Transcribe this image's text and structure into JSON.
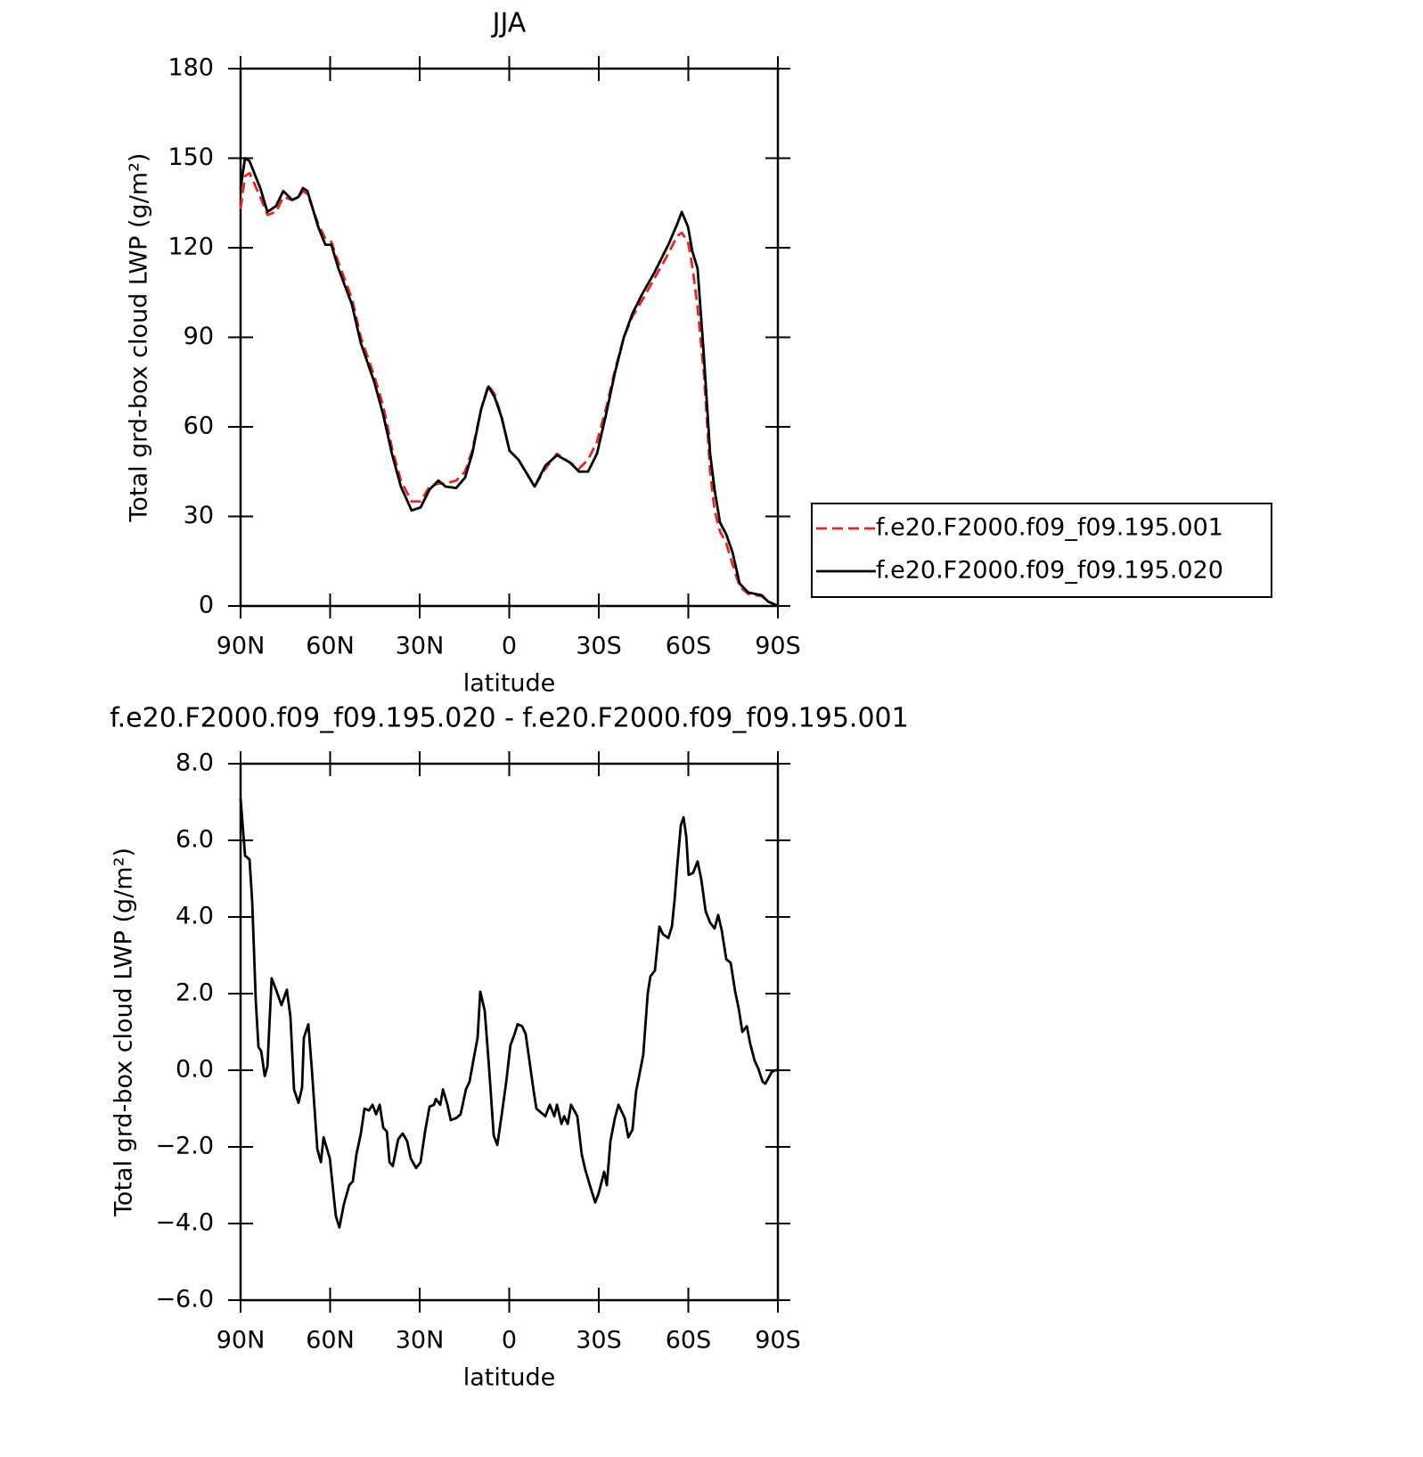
{
  "chart_data": [
    {
      "type": "line",
      "title": "JJA",
      "x_label": "latitude",
      "y_label": "Total grd-box cloud LWP (g/m²)",
      "xlim": [
        90,
        -90
      ],
      "xticks": [
        {
          "value": 90,
          "label": "90N"
        },
        {
          "value": 60,
          "label": "60N"
        },
        {
          "value": 30,
          "label": "30N"
        },
        0,
        {
          "value": -30,
          "label": "30S"
        },
        {
          "value": -60,
          "label": "60S"
        },
        {
          "value": -90,
          "label": "90S"
        }
      ],
      "ylim": [
        0,
        180
      ],
      "yticks": [
        0,
        30,
        60,
        90,
        120,
        150,
        180
      ],
      "legend": "right",
      "series": [
        {
          "name": "f.e20.F2000.f09_f09.195.001",
          "color": "#e8251f",
          "line_style": "dashed",
          "x": [
            90,
            88.5,
            87,
            83.4,
            81,
            78.1,
            75.7,
            72.7,
            70.6,
            69.1,
            67.6,
            64,
            61.6,
            59.6,
            57.2,
            52.7,
            49.7,
            45.2,
            42.2,
            39.3,
            36.3,
            32.7,
            29.7,
            26.7,
            23.7,
            21.3,
            17.8,
            14.8,
            12.4,
            9.4,
            7,
            4.9,
            2.5,
            -0.1,
            -3.1,
            -5.5,
            -8.5,
            -12.1,
            -16,
            -20.4,
            -23.4,
            -26.4,
            -29.4,
            -32.4,
            -35.4,
            -38.4,
            -41.3,
            -44.3,
            -48.8,
            -53.3,
            -56.3,
            -57.8,
            -59.9,
            -61.3,
            -63.1,
            -65.2,
            -67.3,
            -68.8,
            -70.6,
            -72.7,
            -74.8,
            -77.2,
            -80.1,
            -84.6,
            -86.7,
            -90
          ],
          "values": [
            133,
            144,
            145,
            137,
            131,
            132,
            137,
            136,
            137,
            139,
            138,
            128,
            123,
            122,
            115,
            103,
            90,
            77,
            67,
            53,
            42,
            35,
            35,
            40,
            41,
            41,
            42,
            45,
            52,
            66,
            74,
            71,
            63,
            52,
            49,
            45,
            40,
            46,
            51,
            48,
            46,
            49,
            55,
            66,
            79,
            90,
            97,
            102,
            110,
            118,
            124,
            125,
            122,
            114,
            100,
            78,
            45,
            32,
            25,
            21,
            14,
            6.5,
            4,
            3.3,
            1.5,
            0
          ]
        },
        {
          "name": "f.e20.F2000.f09_f09.195.020",
          "color": "#000000",
          "line_style": "solid",
          "x": [
            90,
            88.5,
            87,
            83.4,
            81,
            78.1,
            75.7,
            72.7,
            70.6,
            69.1,
            67.6,
            64,
            61.6,
            59.6,
            57.2,
            52.7,
            49.7,
            45.2,
            42.2,
            39.3,
            36.3,
            32.7,
            29.7,
            26.7,
            23.7,
            21.3,
            17.8,
            14.8,
            12.4,
            9.4,
            7,
            4.9,
            2.5,
            -0.1,
            -3.1,
            -5.5,
            -8.5,
            -12.1,
            -16,
            -20.4,
            -23.4,
            -26.4,
            -29.4,
            -32.4,
            -35.4,
            -38.4,
            -41.3,
            -44.3,
            -48.8,
            -53.3,
            -56.3,
            -57.8,
            -59.9,
            -61.3,
            -63.1,
            -65.2,
            -67.3,
            -68.8,
            -70.6,
            -72.7,
            -74.8,
            -77.2,
            -80.1,
            -84.6,
            -86.7,
            -90
          ],
          "values": [
            140,
            150,
            149,
            140,
            132,
            134,
            139,
            136,
            137,
            140,
            139,
            127,
            121,
            121,
            113,
            101,
            88,
            75,
            64,
            51,
            40,
            32,
            33,
            39,
            42,
            40,
            39.5,
            43,
            51,
            66,
            73.5,
            70,
            63,
            52,
            49,
            45,
            40,
            47,
            50.5,
            48,
            45,
            45,
            51,
            64,
            78,
            90,
            98,
            104,
            112,
            121,
            128,
            132,
            127,
            119,
            113,
            84,
            51,
            39,
            28,
            24,
            18,
            7.5,
            4.5,
            3.6,
            1.5,
            0
          ]
        }
      ]
    },
    {
      "type": "line",
      "title": "f.e20.F2000.f09_f09.195.020 - f.e20.F2000.f09_f09.195.001",
      "x_label": "latitude",
      "y_label": "Total grd-box cloud LWP (g/m²)",
      "xlim": [
        90,
        -90
      ],
      "xticks": [
        {
          "value": 90,
          "label": "90N"
        },
        {
          "value": 60,
          "label": "60N"
        },
        {
          "value": 30,
          "label": "30N"
        },
        0,
        {
          "value": -30,
          "label": "30S"
        },
        {
          "value": -60,
          "label": "60S"
        },
        {
          "value": -90,
          "label": "90S"
        }
      ],
      "ylim": [
        -6,
        8
      ],
      "yticks": [
        {
          "value": -6,
          "label": "−6.0"
        },
        {
          "value": -4,
          "label": "−4.0"
        },
        {
          "value": -2,
          "label": "−2.0"
        },
        {
          "value": 0,
          "label": "0.0"
        },
        {
          "value": 2,
          "label": "2.0"
        },
        {
          "value": 4,
          "label": "4.0"
        },
        {
          "value": 6,
          "label": "6.0"
        },
        {
          "value": 8,
          "label": "8.0"
        }
      ],
      "series": [
        {
          "color": "#000000",
          "line_style": "solid",
          "x": [
            90,
            88.5,
            87,
            86.1,
            84.9,
            84,
            83.1,
            81.9,
            81,
            79.6,
            78.1,
            76.3,
            74.5,
            73.3,
            72.1,
            70.6,
            69.4,
            68.8,
            67.3,
            66.1,
            64.3,
            63.1,
            62.2,
            60.1,
            58.1,
            56.9,
            55.4,
            53.6,
            52.4,
            51.2,
            49.7,
            48.5,
            47,
            45.8,
            44.6,
            43.4,
            42.2,
            41,
            40.1,
            39,
            37.2,
            35.7,
            34.2,
            33,
            31.2,
            29.7,
            28.2,
            26.7,
            25.2,
            24.6,
            23.1,
            22.2,
            20.7,
            19.6,
            17.8,
            16.3,
            14.5,
            13.3,
            11.8,
            10.6,
            9.7,
            8.2,
            6.7,
            5.2,
            4,
            2.5,
            1,
            -0.4,
            -1.6,
            -2.8,
            -4.3,
            -5.5,
            -8.2,
            -9.1,
            -10.6,
            -12.1,
            -13.6,
            -15.1,
            -16,
            -17.5,
            -18.4,
            -19.6,
            -20.7,
            -22.8,
            -24.3,
            -25.5,
            -27,
            -28.8,
            -30,
            -31.8,
            -32.7,
            -33.9,
            -35.4,
            -36.6,
            -37.5,
            -38.7,
            -39.9,
            -41.3,
            -42.5,
            -44.9,
            -46.4,
            -47.3,
            -48.8,
            -50.3,
            -51.5,
            -53.3,
            -54.5,
            -55.4,
            -56.3,
            -57.5,
            -58.4,
            -59.3,
            -60.1,
            -61.6,
            -63.1,
            -64.3,
            -65.8,
            -67.3,
            -68.8,
            -70,
            -71.2,
            -72.7,
            -74.2,
            -75.7,
            -76.9,
            -78.1,
            -79.6,
            -80.7,
            -82.2,
            -83.4,
            -84.9,
            -85.8,
            -87.9,
            -89.1,
            -90
          ],
          "values": [
            7.1,
            5.6,
            5.5,
            4.4,
            1.8,
            0.6,
            0.5,
            -0.15,
            0.1,
            2.4,
            2.1,
            1.7,
            2.1,
            1.4,
            -0.5,
            -0.85,
            -0.45,
            0.85,
            1.2,
            0,
            -2.05,
            -2.4,
            -1.75,
            -2.3,
            -3.8,
            -4.1,
            -3.5,
            -3,
            -2.9,
            -2.2,
            -1.65,
            -1,
            -1.05,
            -0.9,
            -1.15,
            -0.9,
            -1.5,
            -1.6,
            -2.4,
            -2.5,
            -1.8,
            -1.65,
            -1.85,
            -2.3,
            -2.55,
            -2.4,
            -1.6,
            -0.95,
            -0.9,
            -0.75,
            -0.9,
            -0.5,
            -0.9,
            -1.3,
            -1.25,
            -1.15,
            -0.5,
            -0.3,
            0.35,
            0.85,
            2.05,
            1.55,
            0,
            -1.7,
            -1.95,
            -1.15,
            -0.3,
            0.65,
            0.9,
            1.2,
            1.15,
            0.95,
            -0.55,
            -1,
            -1.1,
            -1.2,
            -0.9,
            -1.2,
            -0.9,
            -1.4,
            -1.2,
            -1.4,
            -0.9,
            -1.2,
            -2.2,
            -2.6,
            -3,
            -3.45,
            -3.2,
            -2.65,
            -3,
            -1.85,
            -1.25,
            -0.9,
            -1.05,
            -1.25,
            -1.75,
            -1.55,
            -0.55,
            0.4,
            2,
            2.45,
            2.6,
            3.75,
            3.55,
            3.45,
            3.75,
            4.45,
            5.35,
            6.4,
            6.6,
            6.1,
            5.1,
            5.15,
            5.45,
            5,
            4.15,
            3.85,
            3.7,
            4.05,
            3.65,
            2.9,
            2.8,
            2.05,
            1.6,
            1,
            1.15,
            0.7,
            0.25,
            0.05,
            -0.3,
            -0.35,
            -0.05,
            0,
            0
          ]
        }
      ]
    }
  ]
}
